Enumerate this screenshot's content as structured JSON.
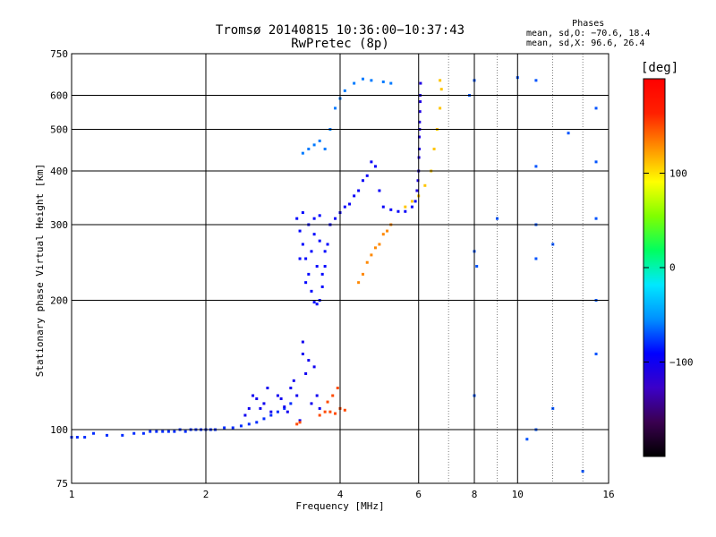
{
  "header": {
    "title_line1": "Tromsø 20140815 10:36:00−10:37:43",
    "title_line2": "RwPretec (8p)"
  },
  "stats": {
    "heading": "Phases",
    "line_o": "mean, sd,O: −70.6, 18.4",
    "line_x": "mean, sd,X:  96.6, 26.4"
  },
  "colorbar": {
    "label": "[deg]",
    "range": [
      -200,
      200
    ],
    "ticks": [
      {
        "value": 100,
        "label": "100"
      },
      {
        "value": 0,
        "label": "0"
      },
      {
        "value": -100,
        "label": "−100"
      }
    ],
    "colors": [
      "#000000",
      "#3a0050",
      "#3b00c8",
      "#0000ff",
      "#0090ff",
      "#00e8ff",
      "#00ff60",
      "#80ff00",
      "#ffff00",
      "#ff9000",
      "#ff2000",
      "#ff0000"
    ]
  },
  "chart_data": {
    "type": "scatter",
    "title": "Tromsø 20140815 10:36:00−10:37:43",
    "subtitle": "RwPretec (8p)",
    "xlabel": "Frequency [MHz]",
    "ylabel": "Stationary phase Virtual Height [km]",
    "xscale": "log",
    "yscale": "log",
    "xlim": [
      1,
      16
    ],
    "ylim": [
      75,
      750
    ],
    "xticks": [
      1,
      2,
      4,
      6,
      8,
      10,
      16
    ],
    "yticks": [
      75,
      100,
      200,
      300,
      400,
      500,
      600,
      750
    ],
    "grid": true,
    "minor_xgrid": [
      7,
      9,
      12,
      14
    ],
    "color_by": "Phase [deg]",
    "series": [
      {
        "trace": "low-ionosphere",
        "phase": -80,
        "points": [
          [
            1.0,
            96
          ],
          [
            1.03,
            96
          ],
          [
            1.07,
            96
          ],
          [
            1.12,
            98
          ],
          [
            1.2,
            97
          ],
          [
            1.3,
            97
          ],
          [
            1.38,
            98
          ],
          [
            1.45,
            98
          ],
          [
            1.5,
            99
          ],
          [
            1.55,
            99
          ],
          [
            1.6,
            99
          ],
          [
            1.65,
            99
          ],
          [
            1.7,
            99
          ],
          [
            1.75,
            100
          ],
          [
            1.8,
            99
          ],
          [
            1.85,
            100
          ],
          [
            1.9,
            100
          ],
          [
            1.95,
            100
          ],
          [
            2.0,
            100
          ],
          [
            2.05,
            100
          ],
          [
            2.1,
            100
          ],
          [
            2.2,
            101
          ],
          [
            2.3,
            101
          ],
          [
            2.4,
            102
          ],
          [
            2.5,
            103
          ],
          [
            2.6,
            104
          ],
          [
            2.7,
            106
          ],
          [
            2.8,
            108
          ],
          [
            2.9,
            110
          ],
          [
            3.0,
            112
          ],
          [
            3.1,
            115
          ]
        ]
      },
      {
        "trace": "e-scatter",
        "phase": -100,
        "points": [
          [
            2.5,
            112
          ],
          [
            2.55,
            120
          ],
          [
            2.6,
            118
          ],
          [
            2.7,
            115
          ],
          [
            2.75,
            125
          ],
          [
            2.8,
            110
          ],
          [
            2.9,
            120
          ],
          [
            2.95,
            118
          ],
          [
            3.0,
            113
          ],
          [
            3.05,
            110
          ],
          [
            3.1,
            125
          ],
          [
            3.15,
            130
          ],
          [
            3.2,
            120
          ],
          [
            3.3,
            150
          ],
          [
            3.35,
            135
          ],
          [
            3.4,
            145
          ],
          [
            3.45,
            115
          ],
          [
            3.5,
            140
          ],
          [
            3.55,
            120
          ],
          [
            3.6,
            112
          ],
          [
            2.45,
            108
          ],
          [
            2.65,
            112
          ],
          [
            3.25,
            105
          ],
          [
            3.3,
            160
          ]
        ]
      },
      {
        "trace": "e-region-x",
        "phase": 150,
        "points": [
          [
            3.2,
            103
          ],
          [
            3.25,
            104
          ],
          [
            3.6,
            108
          ],
          [
            3.7,
            110
          ],
          [
            3.8,
            110
          ],
          [
            3.9,
            109
          ],
          [
            4.0,
            112
          ],
          [
            4.1,
            111
          ],
          [
            3.85,
            120
          ],
          [
            3.95,
            125
          ],
          [
            3.75,
            116
          ]
        ]
      },
      {
        "trace": "f1-block-o",
        "phase": -90,
        "points": [
          [
            3.2,
            310
          ],
          [
            3.25,
            290
          ],
          [
            3.3,
            270
          ],
          [
            3.35,
            250
          ],
          [
            3.4,
            230
          ],
          [
            3.45,
            210
          ],
          [
            3.5,
            198
          ],
          [
            3.55,
            196
          ],
          [
            3.6,
            200
          ],
          [
            3.65,
            215
          ],
          [
            3.7,
            240
          ],
          [
            3.75,
            270
          ],
          [
            3.8,
            300
          ],
          [
            3.3,
            320
          ],
          [
            3.4,
            300
          ],
          [
            3.5,
            285
          ],
          [
            3.6,
            275
          ],
          [
            3.7,
            260
          ],
          [
            3.45,
            260
          ],
          [
            3.55,
            240
          ],
          [
            3.65,
            230
          ],
          [
            3.35,
            220
          ],
          [
            3.25,
            250
          ],
          [
            3.5,
            310
          ],
          [
            3.6,
            315
          ]
        ]
      },
      {
        "trace": "f1-ramp-o",
        "phase": -95,
        "points": [
          [
            3.8,
            300
          ],
          [
            3.9,
            310
          ],
          [
            4.0,
            320
          ],
          [
            4.1,
            330
          ],
          [
            4.2,
            335
          ],
          [
            4.3,
            350
          ],
          [
            4.4,
            360
          ],
          [
            4.5,
            380
          ],
          [
            4.6,
            390
          ],
          [
            4.7,
            420
          ],
          [
            4.8,
            410
          ],
          [
            4.9,
            360
          ],
          [
            5.0,
            330
          ],
          [
            5.2,
            325
          ],
          [
            5.4,
            322
          ],
          [
            5.6,
            322
          ],
          [
            5.8,
            330
          ],
          [
            5.9,
            340
          ]
        ]
      },
      {
        "trace": "f2-o-trace",
        "phase": -110,
        "points": [
          [
            5.95,
            360
          ],
          [
            6.0,
            400
          ],
          [
            6.02,
            450
          ],
          [
            6.03,
            500
          ],
          [
            6.04,
            550
          ],
          [
            6.05,
            600
          ],
          [
            6.06,
            640
          ],
          [
            5.98,
            380
          ],
          [
            6.01,
            430
          ],
          [
            6.02,
            480
          ],
          [
            6.03,
            520
          ],
          [
            6.05,
            580
          ]
        ]
      },
      {
        "trace": "upper-trace-o",
        "phase": -60,
        "points": [
          [
            3.3,
            440
          ],
          [
            3.4,
            450
          ],
          [
            3.5,
            460
          ],
          [
            3.6,
            470
          ],
          [
            3.7,
            450
          ],
          [
            3.8,
            500
          ],
          [
            3.9,
            560
          ],
          [
            4.0,
            590
          ],
          [
            4.1,
            615
          ],
          [
            4.3,
            640
          ],
          [
            4.5,
            655
          ],
          [
            4.7,
            650
          ],
          [
            5.0,
            645
          ],
          [
            5.2,
            640
          ]
        ]
      },
      {
        "trace": "x-trace-low",
        "phase": 130,
        "points": [
          [
            4.4,
            220
          ],
          [
            4.5,
            230
          ],
          [
            4.6,
            245
          ],
          [
            4.7,
            255
          ],
          [
            4.8,
            265
          ],
          [
            4.9,
            270
          ],
          [
            5.0,
            285
          ],
          [
            5.1,
            290
          ],
          [
            5.2,
            300
          ]
        ]
      },
      {
        "trace": "x-trace-high",
        "phase": 110,
        "points": [
          [
            5.6,
            330
          ],
          [
            5.8,
            340
          ],
          [
            6.0,
            350
          ],
          [
            6.2,
            370
          ],
          [
            6.4,
            400
          ],
          [
            6.5,
            450
          ],
          [
            6.6,
            500
          ],
          [
            6.7,
            560
          ],
          [
            6.75,
            620
          ],
          [
            6.7,
            650
          ]
        ]
      },
      {
        "trace": "noise-high-freq",
        "phase": -70,
        "points": [
          [
            8.0,
            650
          ],
          [
            8.0,
            260
          ],
          [
            8.0,
            120
          ],
          [
            9.0,
            310
          ],
          [
            10.0,
            660
          ],
          [
            11.0,
            650
          ],
          [
            11.0,
            410
          ],
          [
            11.0,
            300
          ],
          [
            11.0,
            250
          ],
          [
            12.0,
            270
          ],
          [
            13.0,
            490
          ],
          [
            15.0,
            560
          ],
          [
            15.0,
            420
          ],
          [
            15.0,
            310
          ],
          [
            15.0,
            200
          ],
          [
            15.0,
            150
          ],
          [
            10.5,
            95
          ],
          [
            11.0,
            100
          ],
          [
            12.0,
            112
          ],
          [
            14.0,
            80
          ],
          [
            7.8,
            600
          ],
          [
            8.1,
            240
          ]
        ]
      }
    ]
  }
}
